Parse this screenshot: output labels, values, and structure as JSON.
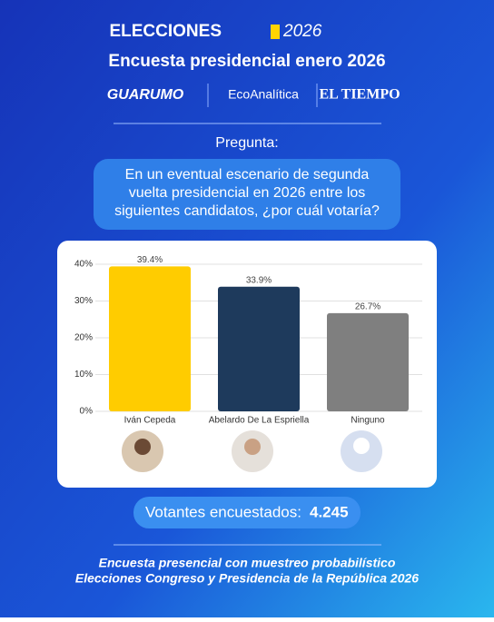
{
  "header": {
    "brand": "ELECCIONES",
    "brand_year": "2026",
    "title": "Encuesta presidencial enero 2026",
    "logos": [
      "GUARUMO",
      "EcoAnalítica",
      "EL TIEMPO"
    ]
  },
  "question": {
    "label": "Pregunta:",
    "lines": [
      "En un eventual escenario de segunda",
      "vuelta presidencial en 2026 entre los",
      "siguientes candidatos, ¿por cuál votaría?"
    ]
  },
  "chart_data": {
    "type": "bar",
    "categories": [
      "Iván Cepeda",
      "Abelardo De La Espriella",
      "Ninguno"
    ],
    "values": [
      39.4,
      33.9,
      26.7
    ],
    "value_labels": [
      "39.4%",
      "33.9%",
      "26.7%"
    ],
    "colors": [
      "#ffcc00",
      "#1e3a5c",
      "#7f7f7f"
    ],
    "ylim": [
      0,
      40
    ],
    "yticks": [
      {
        "value": 0,
        "label": "0%"
      },
      {
        "value": 10,
        "label": "10%"
      },
      {
        "value": 20,
        "label": "20%"
      },
      {
        "value": 30,
        "label": "30%"
      },
      {
        "value": 40,
        "label": "40%"
      }
    ],
    "grid": true
  },
  "sample": {
    "label": "Votantes encuestados:",
    "value": "4.245"
  },
  "footer": {
    "lines": [
      "Encuesta presencial con muestreo probabilístico",
      "Elecciones Congreso y Presidencia de la República 2026"
    ]
  }
}
